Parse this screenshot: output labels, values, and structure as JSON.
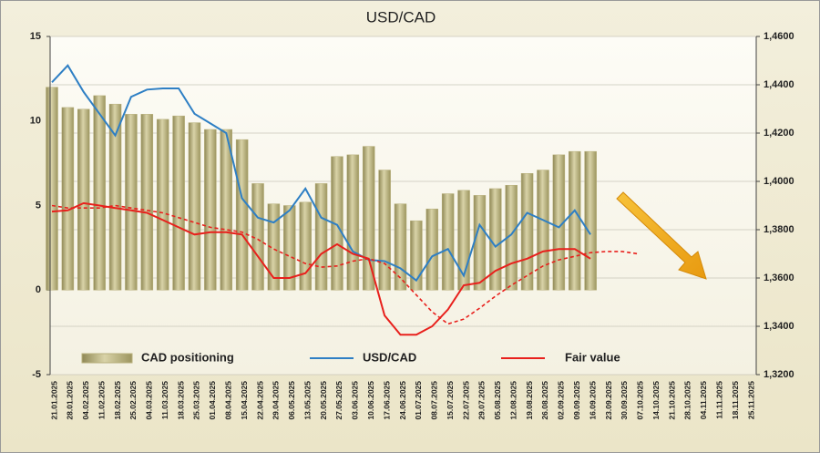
{
  "chart_data": {
    "type": "bar-line",
    "title": "USD/CAD",
    "categories": [
      "21.01.2025",
      "28.01.2025",
      "04.02.2025",
      "11.02.2025",
      "18.02.2025",
      "25.02.2025",
      "04.03.2025",
      "11.03.2025",
      "18.03.2025",
      "25.03.2025",
      "01.04.2025",
      "08.04.2025",
      "15.04.2025",
      "22.04.2025",
      "29.04.2025",
      "06.05.2025",
      "13.05.2025",
      "20.05.2025",
      "27.05.2025",
      "03.06.2025",
      "10.06.2025",
      "17.06.2025",
      "24.06.2025",
      "01.07.2025",
      "08.07.2025",
      "15.07.2025",
      "22.07.2025",
      "29.07.2025",
      "05.08.2025",
      "12.08.2025",
      "19.08.2025",
      "26.08.2025",
      "02.09.2025",
      "09.09.2025",
      "16.09.2025",
      "23.09.2025",
      "30.09.2025",
      "07.10.2025",
      "14.10.2025",
      "21.10.2025",
      "28.10.2025",
      "04.11.2025",
      "11.11.2025",
      "18.11.2025",
      "25.11.2025"
    ],
    "series": [
      {
        "name": "CAD positioning",
        "kind": "bar",
        "color": "#b8b07c",
        "values": [
          12.0,
          10.8,
          10.7,
          11.5,
          11.0,
          10.4,
          10.4,
          10.1,
          10.3,
          9.9,
          9.5,
          9.5,
          8.9,
          6.3,
          5.1,
          5.0,
          5.2,
          6.3,
          7.9,
          8.0,
          8.5,
          7.1,
          5.1,
          4.1,
          4.8,
          5.7,
          5.9,
          5.6,
          6.0,
          6.2,
          6.9,
          7.1,
          8.0,
          8.2,
          8.2,
          null,
          null,
          null,
          null,
          null,
          null,
          null,
          null,
          null,
          null
        ]
      },
      {
        "name": "USD/CAD",
        "kind": "line",
        "axis": "y2",
        "color": "#2e7fc4",
        "values": [
          1.441,
          1.448,
          1.437,
          1.428,
          1.419,
          1.435,
          1.438,
          1.4385,
          1.4385,
          1.428,
          1.424,
          1.42,
          1.393,
          1.385,
          1.383,
          1.388,
          1.397,
          1.385,
          1.382,
          1.371,
          1.3675,
          1.367,
          1.364,
          1.359,
          1.369,
          1.372,
          1.361,
          1.382,
          1.373,
          1.378,
          1.387,
          1.384,
          1.381,
          1.388,
          1.378,
          null,
          null,
          null,
          null,
          null,
          null,
          null,
          null,
          null,
          null
        ]
      },
      {
        "name": "Fair value",
        "kind": "line",
        "axis": "y2",
        "color": "#e8201c",
        "values": [
          1.3875,
          1.388,
          1.391,
          1.39,
          1.389,
          1.388,
          1.387,
          1.384,
          1.381,
          1.378,
          1.379,
          1.379,
          1.378,
          1.369,
          1.36,
          1.36,
          1.362,
          1.37,
          1.374,
          1.37,
          1.368,
          1.3445,
          1.3365,
          1.3365,
          1.34,
          1.347,
          1.357,
          1.358,
          1.363,
          1.366,
          1.368,
          1.371,
          1.372,
          1.372,
          1.368,
          null,
          null,
          null,
          null,
          null,
          null,
          null,
          null,
          null,
          null
        ]
      },
      {
        "kind": "line",
        "axis": "y2",
        "color": "#e8201c",
        "dashed": true,
        "values": [
          1.39,
          1.389,
          1.389,
          1.389,
          1.39,
          1.389,
          1.388,
          1.387,
          1.385,
          1.383,
          1.381,
          1.38,
          1.379,
          1.376,
          1.372,
          1.369,
          1.366,
          1.3645,
          1.365,
          1.367,
          1.368,
          1.366,
          1.36,
          1.353,
          1.346,
          1.341,
          1.343,
          1.3475,
          1.3525,
          1.357,
          1.361,
          1.365,
          1.3675,
          1.369,
          1.3705,
          1.371,
          1.371,
          1.37,
          null,
          null,
          null,
          null,
          null,
          null,
          null
        ]
      }
    ],
    "ylim": [
      -5,
      15
    ],
    "yticks": [
      -5,
      0,
      5,
      10,
      15
    ],
    "y2lim": [
      1.32,
      1.46
    ],
    "y2ticks": [
      {
        "value": 1.32,
        "label": "1,3200"
      },
      {
        "value": 1.34,
        "label": "1,3400"
      },
      {
        "value": 1.36,
        "label": "1,3600"
      },
      {
        "value": 1.38,
        "label": "1,3800"
      },
      {
        "value": 1.4,
        "label": "1,4000"
      },
      {
        "value": 1.42,
        "label": "1,4200"
      },
      {
        "value": 1.44,
        "label": "1,4400"
      },
      {
        "value": 1.46,
        "label": "1,4600"
      }
    ],
    "grid": true
  }
}
